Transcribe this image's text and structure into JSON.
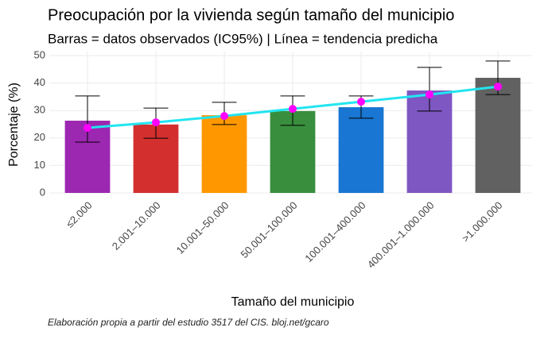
{
  "chart_data": {
    "type": "bar-line",
    "title": "Preocupación por la vivienda según tamaño del municipio",
    "subtitle": "Barras = datos observados (IC95%) | Línea = tendencia predicha",
    "x_label": "Tamaño del municipio",
    "y_label": "Porcentaje (%)",
    "caption": "Elaboración propia a partir del estudio 3517 del CIS. bloj.net/gcaro",
    "categories": [
      "≤2.000",
      "2.001–10.000",
      "10.001–50.000",
      "50.001–100.000",
      "100.001–400.000",
      "400.001–1.000.000",
      ">1.000.000"
    ],
    "bar_colors": [
      "#9c27b0",
      "#d32f2f",
      "#ff9800",
      "#388e3c",
      "#1976d2",
      "#7e57c2",
      "#616161"
    ],
    "observed": [
      26.3,
      24.9,
      28.3,
      29.8,
      31.2,
      37.3,
      41.9
    ],
    "ci_lower": [
      18.5,
      19.9,
      24.9,
      24.6,
      27.2,
      29.8,
      35.8
    ],
    "ci_upper": [
      35.3,
      30.9,
      33.0,
      35.3,
      35.3,
      45.7,
      48.0
    ],
    "predicted": [
      23.7,
      25.7,
      28.0,
      30.6,
      33.2,
      35.8,
      38.7
    ],
    "line_color": "#22e5f0",
    "point_color": "#ff00ff",
    "ylim": [
      0,
      50
    ],
    "yticks": [
      0,
      10,
      20,
      30,
      40,
      50
    ],
    "grid": true
  }
}
